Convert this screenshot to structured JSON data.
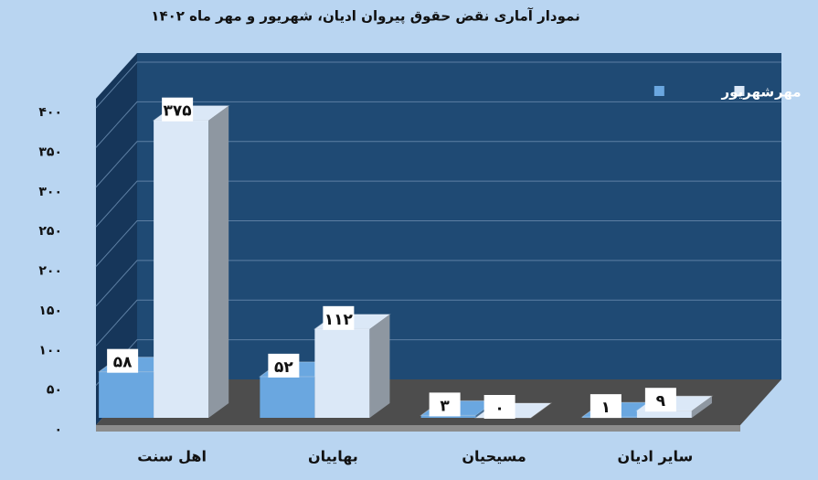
{
  "chart_data": {
    "type": "bar3d",
    "title": "نمودار آماری نقض حقوق پیروان ادیان، شهریور و مهر ماه ۱۴۰۲",
    "categories": [
      "اهل سنت",
      "بهاییان",
      "مسیحیان",
      "سایر ادیان"
    ],
    "series": [
      {
        "name": "شهریور",
        "color": "#6aa7e0",
        "values": [
          58,
          52,
          3,
          1
        ],
        "value_labels": [
          "۵۸",
          "۵۲",
          "۳",
          "۱"
        ]
      },
      {
        "name": "مهر",
        "color": "#dbe8f7",
        "values": [
          375,
          112,
          0,
          9
        ],
        "value_labels": [
          "۳۷۵",
          "۱۱۲",
          "۰",
          "۹"
        ]
      }
    ],
    "ylim": [
      0,
      400
    ],
    "yticks": [
      {
        "value": 0,
        "label": "۰"
      },
      {
        "value": 50,
        "label": "۵۰"
      },
      {
        "value": 100,
        "label": "۱۰۰"
      },
      {
        "value": 150,
        "label": "۱۵۰"
      },
      {
        "value": 200,
        "label": "۲۰۰"
      },
      {
        "value": 250,
        "label": "۲۵۰"
      },
      {
        "value": 300,
        "label": "۳۰۰"
      },
      {
        "value": 350,
        "label": "۳۵۰"
      },
      {
        "value": 400,
        "label": "۴۰۰"
      }
    ],
    "grid": true,
    "legend": "top-right"
  }
}
